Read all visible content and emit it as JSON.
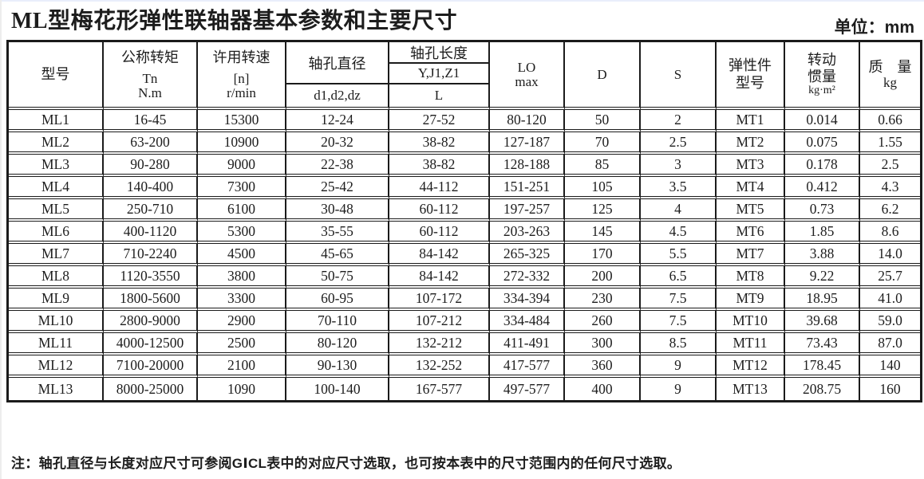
{
  "page": {
    "title": "ML型梅花形弹性联轴器基本参数和主要尺寸",
    "unit_label": "单位：mm",
    "note": "注：轴孔直径与长度对应尺寸可参阅GⅠCL表中的对应尺寸选取，也可按本表中的尺寸范围内的任何尺寸选取。"
  },
  "table": {
    "header": {
      "model": "型号",
      "torque": [
        "公称转矩",
        "Tn",
        "N.m"
      ],
      "speed": [
        "许用转速",
        "[n]",
        "r/min"
      ],
      "bore_diameter": {
        "top": "轴孔直径",
        "bottom": "d1,d2,dz"
      },
      "bore_length": {
        "top": "轴孔长度",
        "mid": "Y,J1,Z1",
        "bottom": "L"
      },
      "lo": [
        "LO",
        "max"
      ],
      "d": "D",
      "s": "S",
      "elastic": [
        "弹性件",
        "型号"
      ],
      "inertia": [
        "转动",
        "惯量",
        "kg·m²"
      ],
      "mass": [
        "质　量",
        "kg"
      ]
    },
    "rows": [
      [
        "ML1",
        "16-45",
        "15300",
        "12-24",
        "27-52",
        "80-120",
        "50",
        "2",
        "MT1",
        "0.014",
        "0.66"
      ],
      [
        "ML2",
        "63-200",
        "10900",
        "20-32",
        "38-82",
        "127-187",
        "70",
        "2.5",
        "MT2",
        "0.075",
        "1.55"
      ],
      [
        "ML3",
        "90-280",
        "9000",
        "22-38",
        "38-82",
        "128-188",
        "85",
        "3",
        "MT3",
        "0.178",
        "2.5"
      ],
      [
        "ML4",
        "140-400",
        "7300",
        "25-42",
        "44-112",
        "151-251",
        "105",
        "3.5",
        "MT4",
        "0.412",
        "4.3"
      ],
      [
        "ML5",
        "250-710",
        "6100",
        "30-48",
        "60-112",
        "197-257",
        "125",
        "4",
        "MT5",
        "0.73",
        "6.2"
      ],
      [
        "ML6",
        "400-1120",
        "5300",
        "35-55",
        "60-112",
        "203-263",
        "145",
        "4.5",
        "MT6",
        "1.85",
        "8.6"
      ],
      [
        "ML7",
        "710-2240",
        "4500",
        "45-65",
        "84-142",
        "265-325",
        "170",
        "5.5",
        "MT7",
        "3.88",
        "14.0"
      ],
      [
        "ML8",
        "1120-3550",
        "3800",
        "50-75",
        "84-142",
        "272-332",
        "200",
        "6.5",
        "MT8",
        "9.22",
        "25.7"
      ],
      [
        "ML9",
        "1800-5600",
        "3300",
        "60-95",
        "107-172",
        "334-394",
        "230",
        "7.5",
        "MT9",
        "18.95",
        "41.0"
      ],
      [
        "ML10",
        "2800-9000",
        "2900",
        "70-110",
        "107-212",
        "334-484",
        "260",
        "7.5",
        "MT10",
        "39.68",
        "59.0"
      ],
      [
        "ML11",
        "4000-12500",
        "2500",
        "80-120",
        "132-212",
        "411-491",
        "300",
        "8.5",
        "MT11",
        "73.43",
        "87.0"
      ],
      [
        "ML12",
        "7100-20000",
        "2100",
        "90-130",
        "132-252",
        "417-577",
        "360",
        "9",
        "MT12",
        "178.45",
        "140"
      ],
      [
        "ML13",
        "8000-25000",
        "1090",
        "100-140",
        "167-577",
        "497-577",
        "400",
        "9",
        "MT13",
        "208.75",
        "160"
      ]
    ]
  }
}
